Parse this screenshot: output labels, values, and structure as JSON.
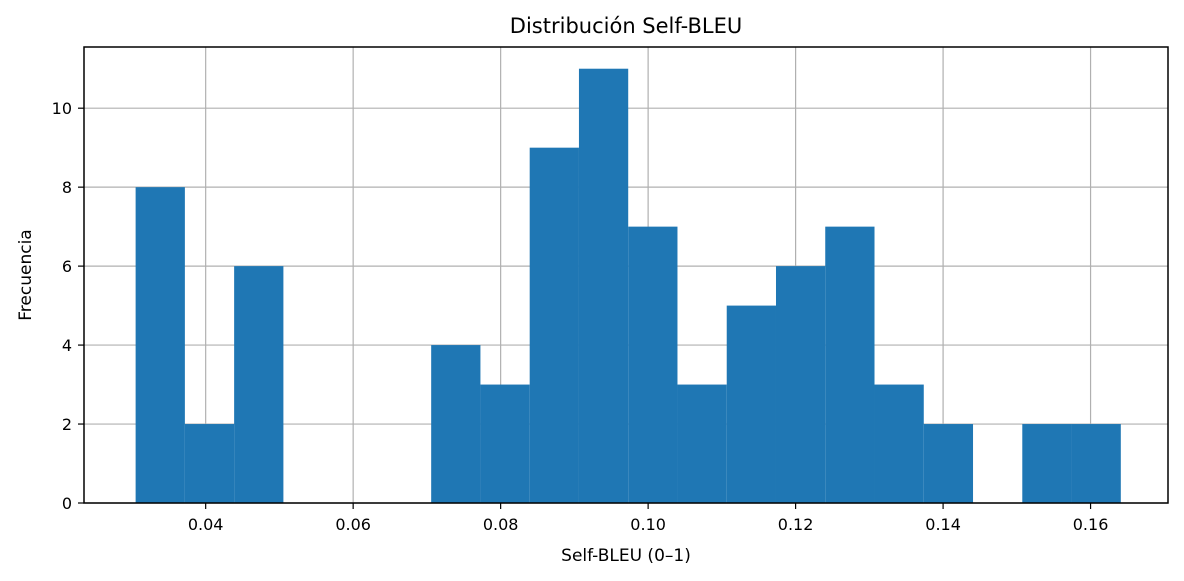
{
  "chart_data": {
    "type": "bar",
    "title": "Distribución Self-BLEU",
    "xlabel": "Self-BLEU (0–1)",
    "ylabel": "Frecuencia",
    "xlim": [
      0.0235,
      0.1705
    ],
    "ylim": [
      0,
      11.55
    ],
    "grid": true,
    "bar_color": "#1f77b4",
    "bin_start": 0.0305,
    "bin_width": 0.00668,
    "values": [
      8,
      2,
      6,
      0,
      0,
      0,
      4,
      3,
      9,
      11,
      7,
      3,
      5,
      6,
      7,
      3,
      2,
      0,
      2,
      2
    ],
    "x_ticks": [
      0.04,
      0.06,
      0.08,
      0.1,
      0.12,
      0.14,
      0.16
    ],
    "x_tick_labels": [
      "0.04",
      "0.06",
      "0.08",
      "0.10",
      "0.12",
      "0.14",
      "0.16"
    ],
    "y_ticks": [
      0,
      2,
      4,
      6,
      8,
      10
    ],
    "y_tick_labels": [
      "0",
      "2",
      "4",
      "6",
      "8",
      "10"
    ]
  }
}
